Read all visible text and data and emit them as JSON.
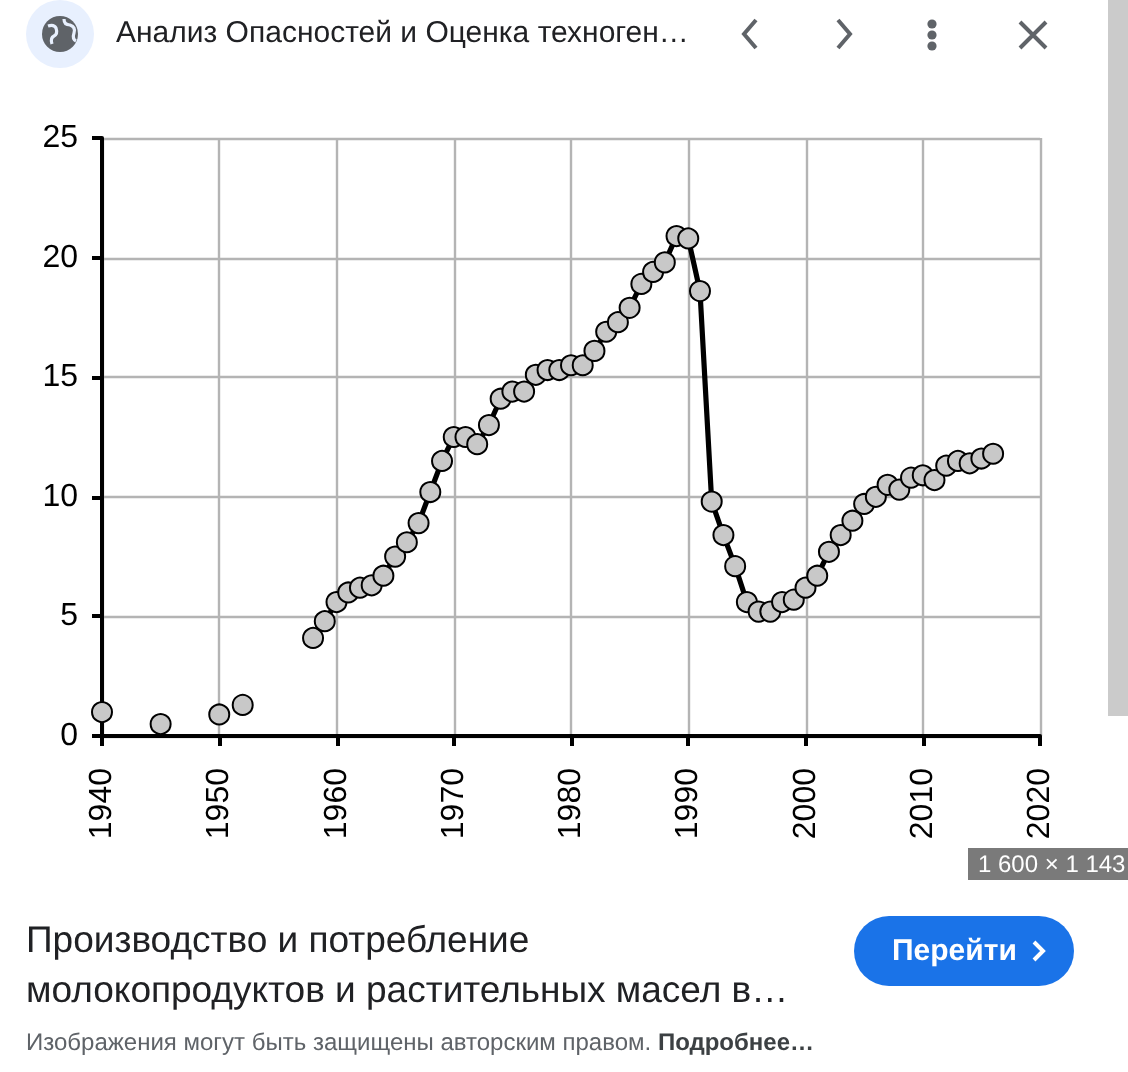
{
  "chart_data": {
    "type": "line",
    "title": "Производство и потребление молокопродуктов и растительных масел в…",
    "annotations": [
      "Анализ Опасностей и Оценка техноген…",
      "1 600 × 1 143",
      "Перейти",
      "Изображения могут быть защищены авторским правом.",
      "Подробнее…"
    ],
    "x": [
      1940,
      1941,
      1942,
      1943,
      1944,
      1945,
      1946,
      1947,
      1948,
      1949,
      1950,
      1951,
      1952,
      1953,
      1954,
      1955,
      1956,
      1957,
      1958,
      1959,
      1960,
      1961,
      1962,
      1963,
      1964,
      1965,
      1966,
      1967,
      1968,
      1969,
      1970,
      1971,
      1972,
      1973,
      1974,
      1975,
      1976,
      1977,
      1978,
      1979,
      1980,
      1981,
      1982,
      1983,
      1984,
      1985,
      1986,
      1987,
      1988,
      1989,
      1990,
      1991,
      1992,
      1993,
      1994,
      1995,
      1996,
      1997,
      1998,
      1999,
      2000,
      2001,
      2002,
      2003,
      2004,
      2005,
      2006,
      2007,
      2008,
      2009,
      2010,
      2011,
      2012,
      2013,
      2014,
      2015,
      2016
    ],
    "values": [
      1.0,
      null,
      null,
      null,
      null,
      0.5,
      null,
      null,
      null,
      null,
      0.9,
      null,
      1.3,
      null,
      null,
      null,
      null,
      null,
      4.1,
      4.8,
      5.6,
      6.0,
      6.2,
      6.3,
      6.7,
      7.5,
      8.1,
      8.9,
      10.2,
      11.5,
      12.5,
      12.5,
      12.2,
      13.0,
      14.1,
      14.4,
      14.4,
      15.1,
      15.3,
      15.3,
      15.5,
      15.5,
      16.1,
      16.9,
      17.3,
      17.9,
      18.9,
      19.4,
      19.8,
      20.9,
      20.8,
      18.6,
      9.8,
      8.4,
      7.1,
      5.6,
      5.2,
      5.2,
      5.6,
      5.7,
      6.2,
      6.7,
      7.7,
      8.4,
      9.0,
      9.7,
      10.0,
      10.5,
      10.3,
      10.8,
      10.9,
      10.7,
      11.3,
      11.5,
      11.4,
      11.6,
      11.8
    ],
    "color": "#000000",
    "xlim": [
      1940,
      2020
    ],
    "xticks": [
      1940,
      1950,
      1960,
      1970,
      1980,
      1990,
      2000,
      2010,
      2020
    ],
    "ylim": [
      0,
      25
    ],
    "yticks": [
      0,
      5,
      10,
      15,
      20,
      25
    ],
    "grid": true,
    "marker": "circle",
    "line_style": "solid"
  }
}
